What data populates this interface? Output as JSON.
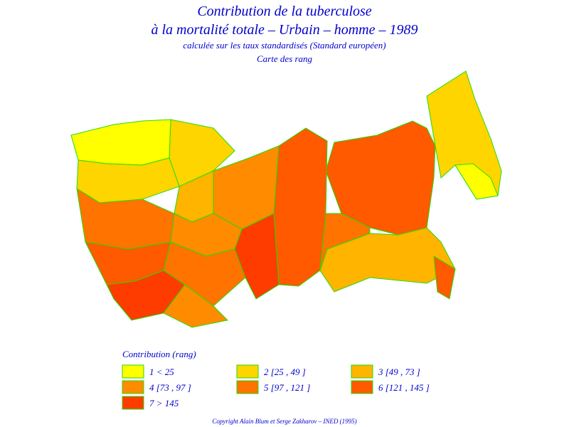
{
  "header": {
    "title": "Contribution de la tuberculose",
    "subtitle": "à la mortalité totale – Urbain – homme – 1989",
    "method": "calculée sur les taux standardisés (Standard européen)",
    "map_type": "Carte des rang"
  },
  "legend": {
    "title": "Contribution (rang)",
    "items": [
      {
        "label": "1 < 25",
        "color": "#ffff00"
      },
      {
        "label": "2 [25 , 49 ]",
        "color": "#ffd500"
      },
      {
        "label": "3 [49 , 73 ]",
        "color": "#ffb400"
      },
      {
        "label": "4 [73 , 97 ]",
        "color": "#ff8c00"
      },
      {
        "label": "5 [97 , 121 ]",
        "color": "#ff7300"
      },
      {
        "label": "6 [121 , 145 ]",
        "color": "#ff5a00"
      },
      {
        "label": "7 > 145",
        "color": "#ff3c00"
      }
    ]
  },
  "footer": {
    "copyright": "Copyright Alain Blum et Serge Zakharov – INED (1995)"
  }
}
